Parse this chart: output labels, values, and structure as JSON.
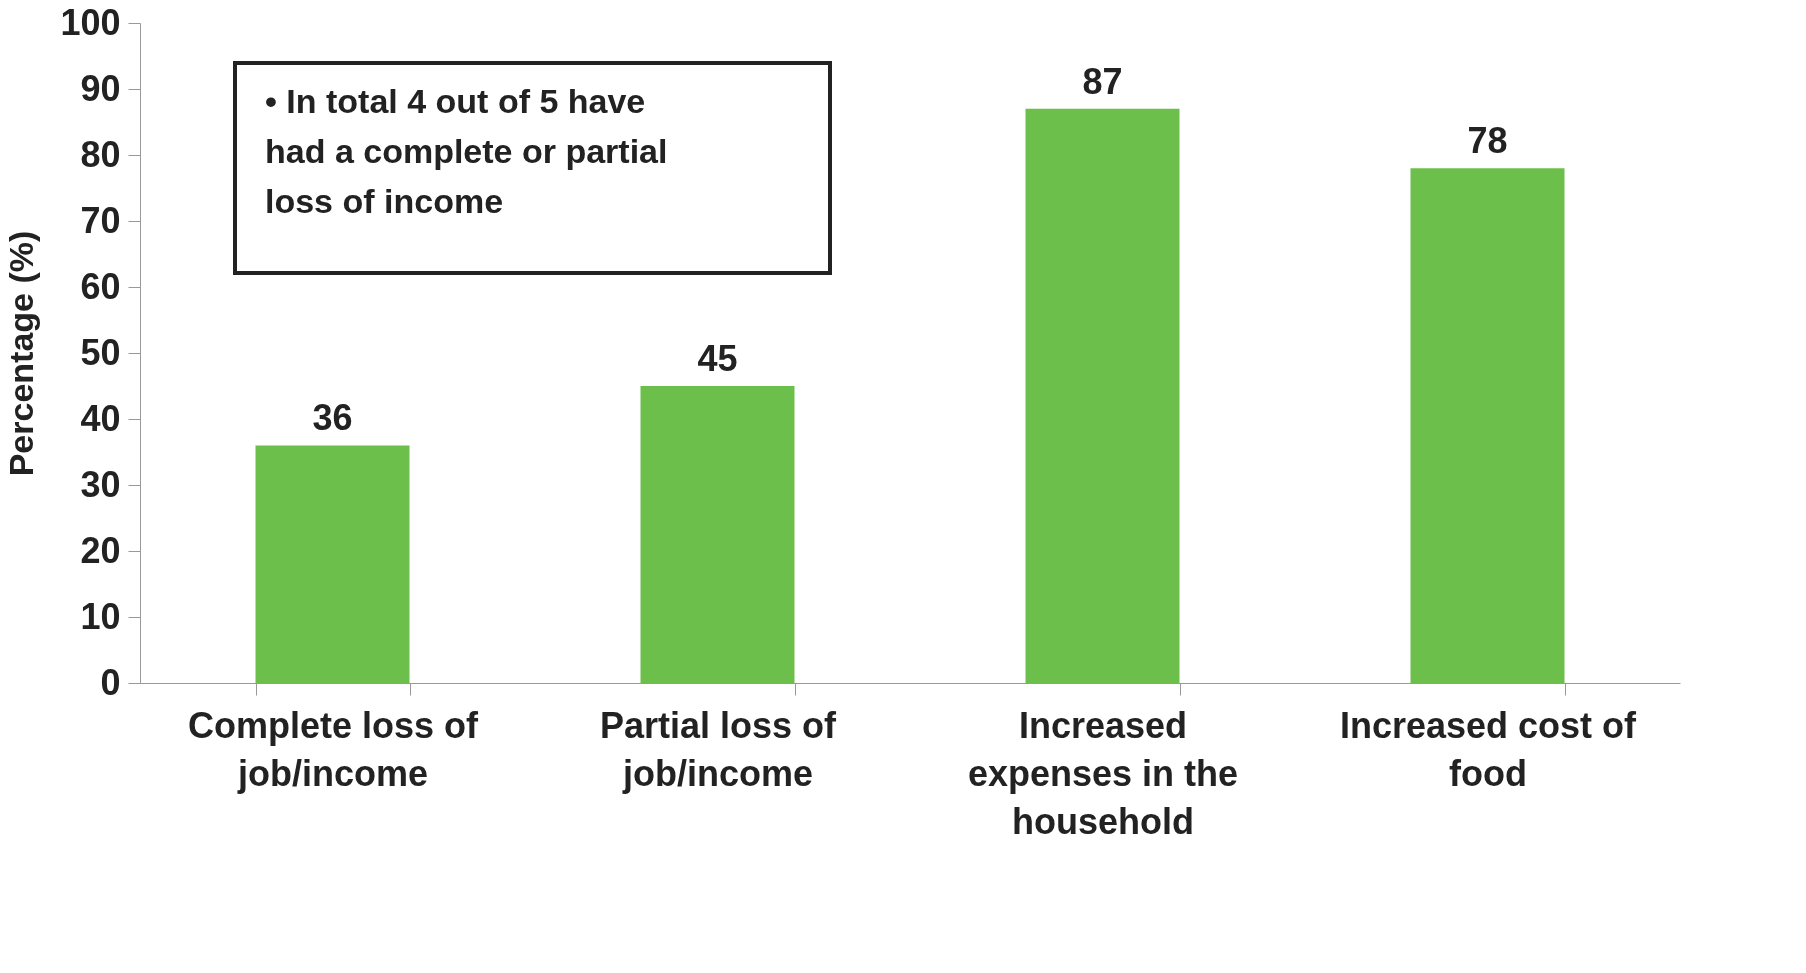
{
  "chart_data": {
    "type": "bar",
    "ylabel": "Percentage (%)",
    "categories": [
      "Complete loss of job/income",
      "Partial loss of job/income",
      "Increased expenses in the household",
      "Increased cost of food"
    ],
    "values": [
      36,
      45,
      87,
      78
    ],
    "color": "#6dbf4b",
    "ylim": [
      0,
      100
    ],
    "yticks": [
      0,
      10,
      20,
      30,
      40,
      50,
      60,
      70,
      80,
      90,
      100
    ],
    "grid": false,
    "data_labels": true,
    "annotations": [
      "• In total 4 out of 5 have had a complete or partial loss of income"
    ]
  }
}
